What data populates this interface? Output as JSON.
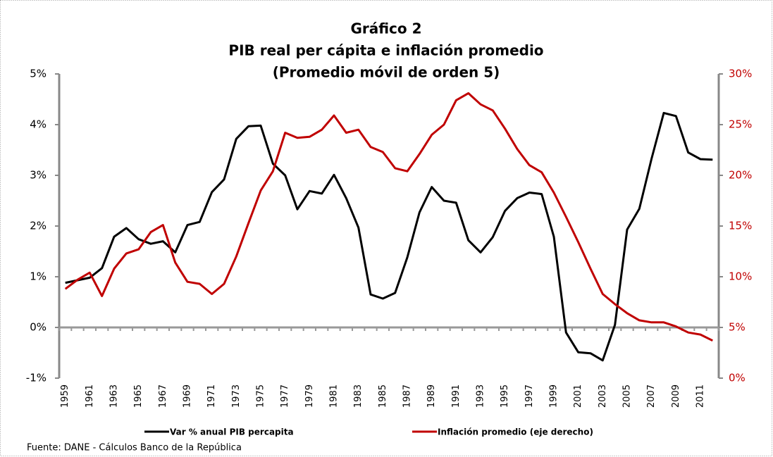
{
  "chart_data": {
    "type": "line",
    "title": "Gráfico 2",
    "subtitle": "PIB real per cápita e inflación promedio",
    "subtitle2": "(Promedio móvil de orden 5)",
    "source": "Fuente: DANE - Cálculos  Banco de la República",
    "categories": [
      "1959",
      null,
      "1961",
      null,
      "1963",
      null,
      "1965",
      null,
      "1967",
      null,
      "1969",
      null,
      "1971",
      null,
      "1973",
      null,
      "1975",
      null,
      "1977",
      null,
      "1979",
      null,
      "1981",
      null,
      "1983",
      null,
      "1985",
      null,
      "1987",
      null,
      "1989",
      null,
      "1991",
      null,
      "1993",
      null,
      "1995",
      null,
      "1997",
      null,
      "1999",
      null,
      "2001",
      null,
      "2003",
      null,
      "2005",
      null,
      "2007",
      null,
      "2009",
      null,
      "2011",
      null
    ],
    "series": [
      {
        "name": "Var % anual PIB percapita",
        "color": "#000000",
        "values": [
          0.88,
          0.93,
          0.98,
          1.17,
          1.79,
          1.96,
          1.74,
          1.65,
          1.7,
          1.48,
          2.02,
          2.08,
          2.67,
          2.92,
          3.72,
          3.97,
          3.98,
          3.23,
          3.0,
          2.33,
          2.69,
          2.64,
          3.01,
          2.55,
          1.97,
          0.65,
          0.57,
          0.68,
          1.38,
          2.27,
          2.77,
          2.5,
          2.46,
          1.72,
          1.48,
          1.78,
          2.3,
          2.55,
          2.66,
          2.63,
          1.79,
          -0.1,
          -0.49,
          -0.51,
          -0.65,
          0.05,
          1.93,
          2.34,
          3.33,
          4.23,
          4.17,
          3.45,
          3.32,
          3.31
        ]
      },
      {
        "name": "Inflación promedio (eje derecho)",
        "color": "#c00000",
        "axis": "y2",
        "values": [
          8.8,
          9.7,
          10.4,
          8.1,
          10.8,
          12.3,
          12.7,
          14.4,
          15.1,
          11.4,
          9.5,
          9.3,
          8.3,
          9.3,
          12.0,
          15.3,
          18.5,
          20.4,
          24.2,
          23.7,
          23.8,
          24.5,
          25.9,
          24.2,
          24.5,
          22.8,
          22.3,
          20.7,
          20.4,
          22.1,
          24.0,
          25.0,
          27.4,
          28.1,
          27.0,
          26.4,
          24.6,
          22.6,
          21.0,
          20.3,
          18.3,
          15.9,
          13.4,
          10.8,
          8.3,
          7.3,
          6.4,
          5.7,
          5.5,
          5.5,
          5.1,
          4.5,
          4.3,
          3.7
        ]
      }
    ],
    "ylim": [
      -1,
      5
    ],
    "yticks": [
      {
        "value": -1,
        "label": "-1%"
      },
      {
        "value": 0,
        "label": "0%"
      },
      {
        "value": 1,
        "label": "1%"
      },
      {
        "value": 2,
        "label": "2%"
      },
      {
        "value": 3,
        "label": "3%"
      },
      {
        "value": 4,
        "label": "4%"
      },
      {
        "value": 5,
        "label": "5%"
      }
    ],
    "y2lim": [
      0,
      30
    ],
    "y2ticks": [
      {
        "value": 0,
        "label": "0%"
      },
      {
        "value": 5,
        "label": "5%"
      },
      {
        "value": 10,
        "label": "10%"
      },
      {
        "value": 15,
        "label": "15%"
      },
      {
        "value": 20,
        "label": "20%"
      },
      {
        "value": 25,
        "label": "25%"
      },
      {
        "value": 30,
        "label": "30%"
      }
    ],
    "y2color": "#c00000",
    "legend": "bottom"
  }
}
